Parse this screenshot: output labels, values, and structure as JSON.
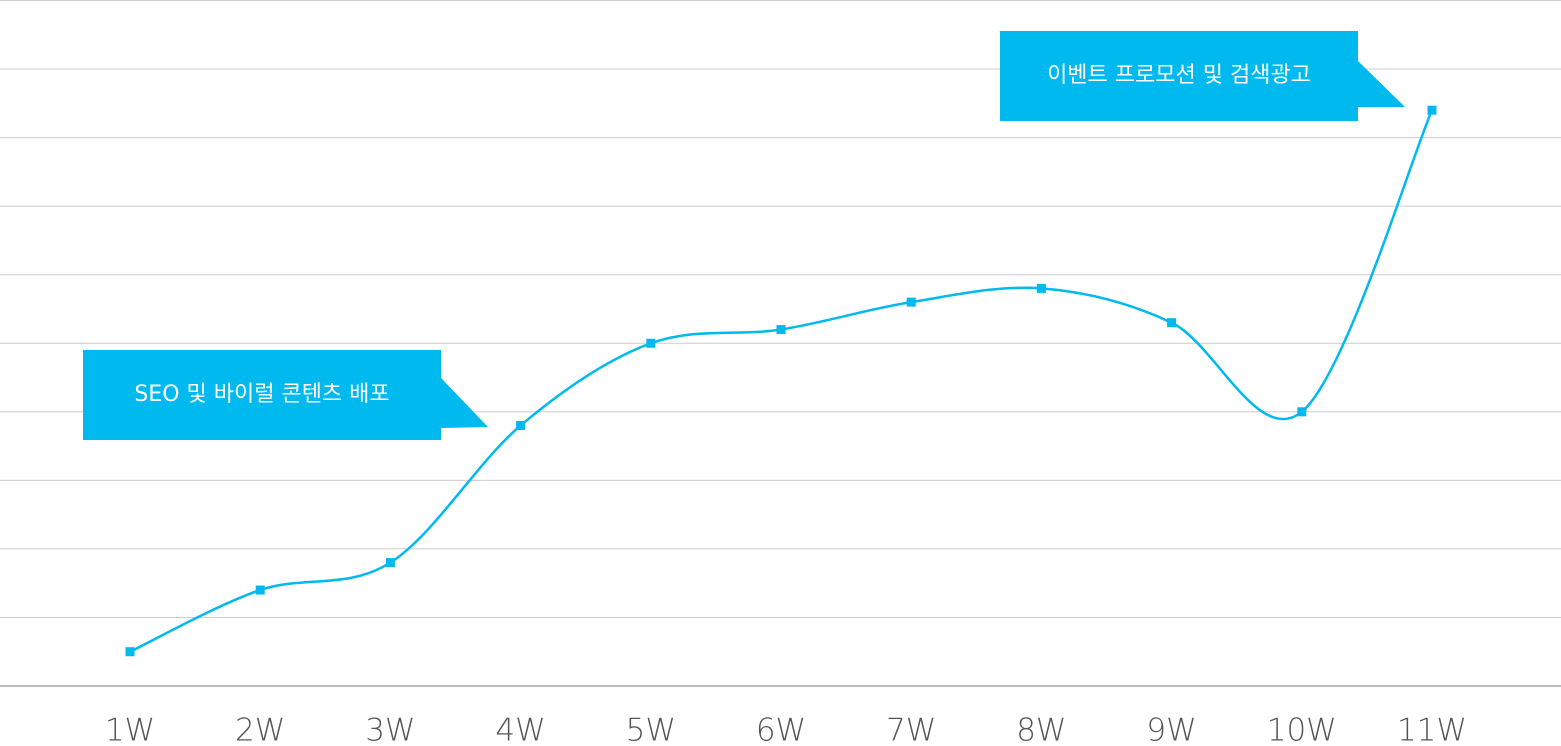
{
  "chart_data": {
    "type": "line",
    "categories": [
      "1W",
      "2W",
      "3W",
      "4W",
      "5W",
      "6W",
      "7W",
      "8W",
      "9W",
      "10W",
      "11W"
    ],
    "series": [
      {
        "color": "#00b9ef",
        "values": [
          0.5,
          1.4,
          1.8,
          3.8,
          5.0,
          5.2,
          5.6,
          5.8,
          5.3,
          4.0,
          8.4
        ]
      }
    ],
    "ylim": [
      0,
      10
    ],
    "yticks": [
      0,
      1,
      2,
      3,
      4,
      5,
      6,
      7,
      8,
      9,
      10
    ],
    "grid": true,
    "annotations": [
      "SEO 및 바이럴 콘텐츠 배포",
      "이벤트 프로모션 및 검색광고"
    ]
  }
}
